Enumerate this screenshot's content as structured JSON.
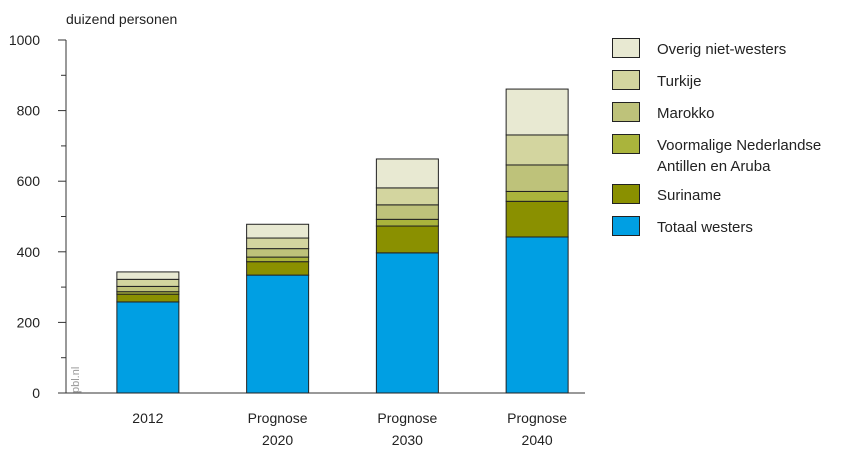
{
  "chart_data": {
    "type": "bar",
    "stacked": true,
    "ylabel": "duizend personen",
    "ylim": [
      0,
      1000
    ],
    "yticks": [
      0,
      200,
      400,
      600,
      800,
      1000
    ],
    "categories": [
      [
        "2012"
      ],
      [
        "Prognose",
        "2020"
      ],
      [
        "Prognose",
        "2030"
      ],
      [
        "Prognose",
        "2040"
      ]
    ],
    "series": [
      {
        "name": "Totaal westers",
        "color": "#009fe3",
        "values": [
          258,
          334,
          397,
          442
        ]
      },
      {
        "name": "Suriname",
        "color": "#8a9000",
        "values": [
          22,
          38,
          76,
          101
        ]
      },
      {
        "name": "Voormalige Nederlandse\nAntillen en Aruba",
        "color": "#aab43c",
        "values": [
          7,
          13,
          19,
          28
        ]
      },
      {
        "name": "Marokko",
        "color": "#bec27a",
        "values": [
          15,
          24,
          41,
          75
        ]
      },
      {
        "name": "Turkije",
        "color": "#d3d59f",
        "values": [
          20,
          30,
          48,
          85
        ]
      },
      {
        "name": "Overig niet-westers",
        "color": "#e8e9d2",
        "values": [
          21,
          39,
          82,
          130
        ]
      }
    ],
    "legend_position": "right",
    "grid": false,
    "watermark": "pbl.nl"
  }
}
